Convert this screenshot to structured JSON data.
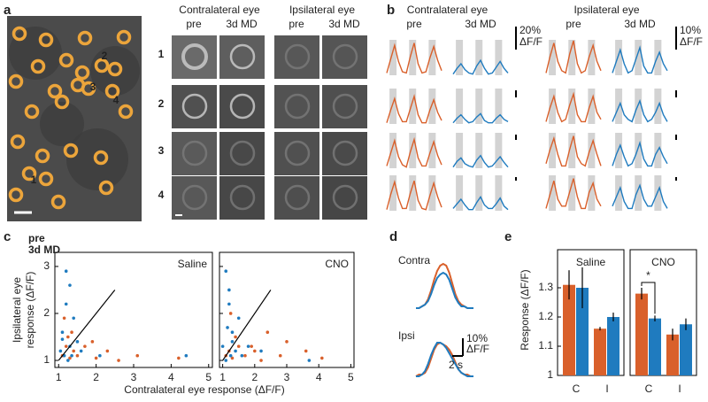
{
  "panel_labels": [
    "a",
    "b",
    "c",
    "d",
    "e"
  ],
  "panel_a": {
    "cell_labels": [
      "1",
      "2",
      "3",
      "4"
    ],
    "groups": [
      "Contralateral eye",
      "Ipsilateral eye"
    ],
    "conditions": [
      "pre",
      "3d MD"
    ],
    "row_labels": [
      "1",
      "2",
      "3",
      "4"
    ]
  },
  "chart_data": [
    {
      "type": "trace-grid",
      "groups": [
        "Contralateral eye",
        "Ipsilateral eye"
      ],
      "conditions": [
        "pre",
        "3d MD"
      ],
      "colors": [
        "#d9602b",
        "#1f7bbf"
      ],
      "scale_bars": [
        {
          "value": 20,
          "label": "20%"
        },
        {
          "value": 10,
          "label": "10%"
        }
      ],
      "scale_unit": "ΔF/F",
      "traces": [
        [
          [
            [
              2,
              14,
              26,
              12,
              3,
              2,
              16,
              28,
              10,
              2,
              3,
              15,
              25,
              13,
              4
            ],
            [
              1,
              6,
              10,
              5,
              2,
              1,
              8,
              13,
              6,
              1,
              2,
              7,
              12,
              6,
              2
            ]
          ],
          [
            [
              1,
              8,
              14,
              6,
              2,
              1,
              9,
              15,
              5,
              1,
              2,
              8,
              13,
              6,
              2
            ],
            [
              1,
              6,
              11,
              5,
              1,
              2,
              7,
              12,
              4,
              1,
              1,
              6,
              10,
              5,
              2
            ]
          ]
        ],
        [
          [
            [
              1,
              12,
              22,
              9,
              2,
              2,
              13,
              24,
              8,
              1,
              1,
              12,
              21,
              10,
              3
            ],
            [
              1,
              5,
              8,
              4,
              1,
              2,
              6,
              9,
              3,
              1,
              1,
              5,
              8,
              4,
              2
            ]
          ],
          [
            [
              1,
              7,
              12,
              5,
              1,
              2,
              8,
              13,
              4,
              1,
              1,
              7,
              12,
              5,
              2
            ],
            [
              1,
              5,
              9,
              4,
              2,
              1,
              6,
              10,
              4,
              1,
              2,
              5,
              9,
              4,
              1
            ]
          ]
        ],
        [
          [
            [
              2,
              13,
              24,
              10,
              3,
              1,
              14,
              25,
              9,
              2,
              2,
              13,
              23,
              11,
              3
            ],
            [
              1,
              6,
              9,
              4,
              2,
              1,
              7,
              11,
              5,
              1,
              2,
              6,
              10,
              5,
              1
            ]
          ],
          [
            [
              2,
              8,
              13,
              6,
              1,
              1,
              8,
              14,
              5,
              2,
              1,
              7,
              12,
              6,
              1
            ],
            [
              1,
              6,
              10,
              5,
              1,
              2,
              6,
              11,
              4,
              1,
              1,
              6,
              9,
              5,
              2
            ]
          ]
        ],
        [
          [
            [
              1,
              14,
              25,
              11,
              2,
              2,
              15,
              26,
              9,
              2,
              1,
              13,
              24,
              12,
              3
            ],
            [
              2,
              6,
              10,
              5,
              1,
              1,
              7,
              12,
              5,
              2,
              2,
              6,
              11,
              4,
              1
            ]
          ],
          [
            [
              1,
              7,
              13,
              5,
              2,
              2,
              8,
              14,
              6,
              1,
              1,
              8,
              12,
              5,
              2
            ],
            [
              2,
              6,
              10,
              4,
              1,
              1,
              7,
              11,
              5,
              2,
              2,
              6,
              10,
              4,
              1
            ]
          ]
        ]
      ]
    },
    {
      "type": "scatter",
      "title": "Saline",
      "xlabel": "Contralateral eye response (ΔF/F)",
      "ylabel": [
        "Ipsilateral eye",
        "response (ΔF/F)"
      ],
      "xlim": [
        0.9,
        5.1
      ],
      "ylim": [
        0.85,
        3.3
      ],
      "xticks": [
        1,
        2,
        3,
        4,
        5
      ],
      "yticks": [
        1,
        2,
        3
      ],
      "reference_line": {
        "x": [
          1,
          2.5
        ],
        "y": [
          1,
          2.5
        ]
      },
      "series": [
        {
          "name": "pre",
          "color": "#d9602b",
          "x": [
            1.1,
            1.2,
            1.3,
            1.25,
            1.4,
            1.5,
            1.7,
            2.0,
            2.3,
            2.6,
            3.1,
            1.15,
            1.35,
            1.9,
            4.2
          ],
          "y": [
            1.1,
            1.3,
            1.05,
            1.5,
            1.2,
            1.1,
            1.3,
            1.05,
            1.2,
            1.0,
            1.1,
            1.9,
            1.6,
            1.4,
            1.05
          ]
        },
        {
          "name": "3d MD",
          "color": "#1f7bbf",
          "x": [
            1.05,
            1.15,
            1.2,
            1.3,
            1.1,
            1.25,
            1.4,
            1.6,
            1.2,
            1.35,
            1.5,
            2.1,
            4.4,
            1.1,
            1.3
          ],
          "y": [
            1.2,
            1.1,
            2.9,
            1.3,
            1.6,
            1.0,
            1.9,
            1.2,
            2.2,
            1.1,
            1.4,
            1.1,
            1.1,
            1.45,
            2.6
          ]
        }
      ]
    },
    {
      "type": "scatter",
      "title": "CNO",
      "xlim": [
        0.9,
        5.1
      ],
      "ylim": [
        0.85,
        3.3
      ],
      "xticks": [
        1,
        2,
        3,
        4,
        5
      ],
      "reference_line": {
        "x": [
          1,
          2.5
        ],
        "y": [
          1,
          2.5
        ]
      },
      "series": [
        {
          "color": "#d9602b",
          "x": [
            1.1,
            1.2,
            1.3,
            1.5,
            1.7,
            2.0,
            2.4,
            2.8,
            3.6,
            4.1,
            1.25,
            1.4,
            1.9,
            2.2,
            3.0
          ],
          "y": [
            1.1,
            1.2,
            1.05,
            1.3,
            1.1,
            1.2,
            1.6,
            1.1,
            1.2,
            1.05,
            2.0,
            1.5,
            1.3,
            1.0,
            1.4
          ]
        },
        {
          "color": "#1f7bbf",
          "x": [
            1.0,
            1.1,
            1.15,
            1.2,
            1.25,
            1.3,
            1.4,
            1.5,
            1.2,
            1.1,
            1.6,
            1.8,
            1.3,
            3.7,
            2.2
          ],
          "y": [
            1.3,
            2.9,
            1.7,
            2.2,
            1.1,
            1.4,
            1.2,
            1.9,
            2.5,
            1.0,
            1.1,
            1.3,
            1.6,
            1.0,
            1.2
          ]
        }
      ]
    },
    {
      "type": "trace-pair",
      "rows": [
        {
          "label": "Contra",
          "series": [
            {
              "color": "#d9602b",
              "values": [
                0,
                0,
                1,
                2,
                5,
                10,
                16,
                21,
                24,
                25,
                24,
                20,
                14,
                8,
                4,
                2,
                1,
                0,
                0,
                0
              ]
            },
            {
              "color": "#1f7bbf",
              "values": [
                0,
                0,
                1,
                2,
                4,
                8,
                13,
                17,
                19,
                20,
                19,
                16,
                11,
                6,
                3,
                1,
                1,
                0,
                0,
                0
              ]
            }
          ]
        },
        {
          "label": "Ipsi",
          "series": [
            {
              "color": "#d9602b",
              "values": [
                0,
                1,
                1,
                2,
                5,
                10,
                15,
                18,
                19,
                18,
                17,
                15,
                12,
                8,
                4,
                2,
                1,
                1,
                0,
                0
              ]
            },
            {
              "color": "#1f7bbf",
              "values": [
                0,
                0,
                1,
                3,
                7,
                12,
                16,
                19,
                19,
                18,
                16,
                13,
                10,
                7,
                4,
                2,
                1,
                0,
                0,
                0
              ]
            }
          ]
        }
      ],
      "scale_bar": {
        "value": 10,
        "label": "10%"
      },
      "scale_unit": "ΔF/F",
      "time_label": "2 s"
    },
    {
      "type": "bar",
      "title": "Saline",
      "ylabel": "Response (ΔF/F)",
      "categories": [
        "C",
        "I"
      ],
      "ylim": [
        1,
        1.4
      ],
      "yticks": [
        1,
        1.1,
        1.2,
        1.3
      ],
      "series": [
        {
          "color": "#d9602b",
          "values": [
            1.31,
            1.16
          ],
          "errors": [
            0.05,
            0.006
          ]
        },
        {
          "color": "#1f7bbf",
          "values": [
            1.3,
            1.2
          ],
          "errors": [
            0.07,
            0.015
          ]
        }
      ]
    },
    {
      "type": "bar",
      "title": "CNO",
      "categories": [
        "C",
        "I"
      ],
      "ylim": [
        1,
        1.4
      ],
      "annotation": "*",
      "series": [
        {
          "color": "#d9602b",
          "values": [
            1.28,
            1.14
          ],
          "errors": [
            0.02,
            0.02
          ]
        },
        {
          "color": "#1f7bbf",
          "values": [
            1.195,
            1.175
          ],
          "errors": [
            0.01,
            0.02
          ]
        }
      ]
    }
  ]
}
